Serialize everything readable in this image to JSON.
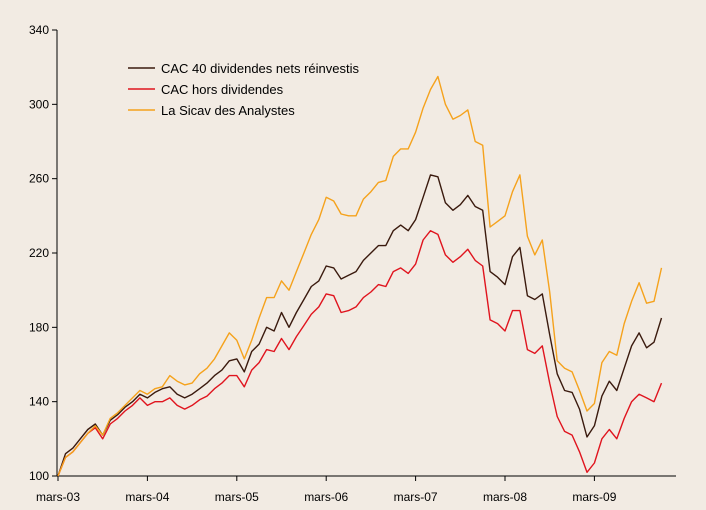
{
  "chart_data": {
    "type": "line",
    "title": "",
    "xlabel": "",
    "ylabel": "",
    "ylim": [
      100,
      340
    ],
    "y_ticks": [
      "100",
      "140",
      "180",
      "220",
      "260",
      "300",
      "340"
    ],
    "x_tick_labels": [
      "mars-03",
      "mars-04",
      "mars-05",
      "mars-06",
      "mars-07",
      "mars-08",
      "mars-09"
    ],
    "x_period": "monthly, mars-03 to déc-09",
    "grid": false,
    "legend_position": "top-left",
    "background": "#f2ebe3",
    "series": [
      {
        "name": "CAC 40 dividendes nets réinvestis",
        "color": "#3a1a0e",
        "values": [
          100,
          112,
          115,
          120,
          125,
          128,
          122,
          130,
          133,
          137,
          140,
          144,
          142,
          145,
          147,
          148,
          144,
          142,
          144,
          147,
          150,
          154,
          157,
          162,
          163,
          156,
          167,
          171,
          180,
          178,
          188,
          180,
          188,
          195,
          202,
          205,
          213,
          212,
          206,
          208,
          210,
          216,
          220,
          224,
          224,
          232,
          235,
          232,
          238,
          250,
          262,
          261,
          247,
          243,
          246,
          251,
          245,
          243,
          210,
          207,
          203,
          218,
          223,
          197,
          195,
          198,
          176,
          155,
          146,
          145,
          136,
          121,
          127,
          143,
          151,
          146,
          158,
          170,
          177,
          169,
          172,
          185
        ]
      },
      {
        "name": "CAC hors dividendes",
        "color": "#e0141e",
        "values": [
          100,
          110,
          113,
          118,
          123,
          126,
          120,
          128,
          131,
          135,
          138,
          142,
          138,
          140,
          140,
          142,
          138,
          136,
          138,
          141,
          143,
          147,
          150,
          154,
          154,
          148,
          157,
          161,
          168,
          167,
          174,
          168,
          175,
          181,
          187,
          191,
          198,
          197,
          188,
          189,
          191,
          196,
          199,
          203,
          202,
          210,
          212,
          209,
          214,
          227,
          232,
          230,
          219,
          215,
          218,
          222,
          216,
          213,
          184,
          182,
          178,
          189,
          189,
          168,
          166,
          170,
          150,
          132,
          124,
          122,
          113,
          102,
          107,
          120,
          125,
          120,
          131,
          140,
          144,
          142,
          140,
          150
        ]
      },
      {
        "name": "La Sicav des Analystes",
        "color": "#f5a21c",
        "values": [
          100,
          110,
          113,
          118,
          123,
          127,
          122,
          131,
          134,
          138,
          142,
          146,
          144,
          147,
          148,
          154,
          151,
          149,
          150,
          155,
          158,
          163,
          170,
          177,
          173,
          163,
          173,
          185,
          196,
          196,
          205,
          200,
          210,
          220,
          230,
          238,
          250,
          248,
          241,
          240,
          240,
          249,
          253,
          258,
          259,
          272,
          276,
          276,
          285,
          298,
          308,
          315,
          300,
          292,
          294,
          297,
          280,
          278,
          234,
          237,
          240,
          253,
          262,
          229,
          219,
          227,
          199,
          162,
          158,
          156,
          146,
          135,
          139,
          161,
          167,
          165,
          182,
          194,
          204,
          193,
          194,
          212
        ]
      }
    ]
  }
}
